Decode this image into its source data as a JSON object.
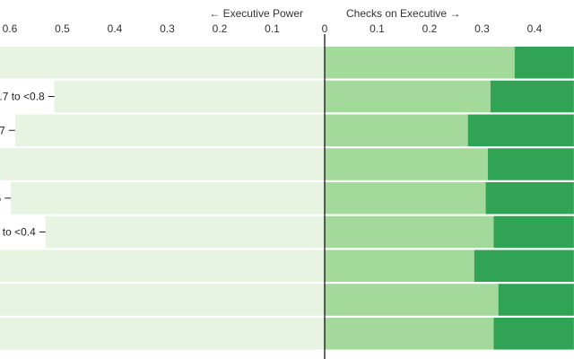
{
  "chart_data": {
    "type": "bar",
    "orientation": "horizontal-diverging",
    "direction_labels": {
      "left": "← Executive Power",
      "right": "Checks on Executive →"
    },
    "x_ticks_left": [
      "0.6",
      "0.5",
      "0.4",
      "0.3",
      "0.2",
      "0.1",
      "0"
    ],
    "x_ticks_right": [
      "0.1",
      "0.2",
      "0.3",
      "0.4"
    ],
    "x_tick_values_left": [
      0.6,
      0.5,
      0.4,
      0.3,
      0.2,
      0.1,
      0
    ],
    "x_tick_values_right": [
      0.1,
      0.2,
      0.3,
      0.4
    ],
    "xlim": [
      -0.62,
      0.475
    ],
    "categories": [
      "",
      ".7 to <0.8",
      "7",
      "",
      "5",
      "to <0.4",
      "",
      "",
      ""
    ],
    "series": [
      {
        "key": "executive",
        "color": "#e6f4e1",
        "values": [
          -0.62,
          -0.515,
          -0.59,
          -0.62,
          -0.598,
          -0.532,
          -0.62,
          -0.62,
          -0.62
        ]
      },
      {
        "key": "checks_light",
        "color": "#a3d99a",
        "values": [
          0.362,
          0.316,
          0.273,
          0.311,
          0.307,
          0.322,
          0.285,
          0.331,
          0.322
        ]
      },
      {
        "key": "checks_dark",
        "color": "#31a354",
        "values": [
          0.113,
          0.159,
          0.202,
          0.164,
          0.168,
          0.153,
          0.19,
          0.144,
          0.153
        ]
      }
    ],
    "grid": false,
    "legend": "none"
  }
}
